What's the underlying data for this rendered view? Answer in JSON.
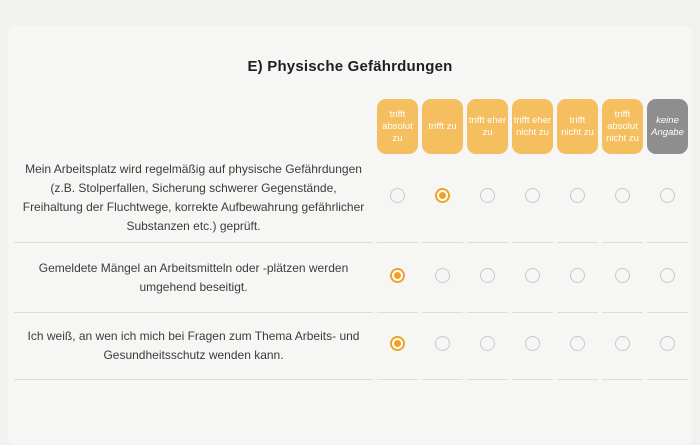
{
  "page": {
    "title": "E) Physische Gefährdungen"
  },
  "colors": {
    "background": "#f1f1ef",
    "panel": "#f6f6f5",
    "header_tile": "#f5be5f",
    "header_tile_no_answer": "#8e8e8e",
    "radio_selected": "#f0a227",
    "radio_unselected_border": "#c9c9c9",
    "divider": "#dcdcdc",
    "question_text": "#3c3c3c"
  },
  "survey": {
    "columns": [
      {
        "label": "trifft absolut zu"
      },
      {
        "label": "trifft zu"
      },
      {
        "label": "trifft eher zu"
      },
      {
        "label": "trifft eher nicht zu"
      },
      {
        "label": "trifft nicht zu"
      },
      {
        "label": "trifft absolut nicht zu"
      },
      {
        "label": "keine Angabe"
      }
    ],
    "rows": [
      {
        "text": "Mein Arbeitsplatz wird regelmäßig auf physische Gefährdungen (z.B. Stolperfallen, Sicherung schwerer Gegenstände, Freihaltung der Fluchtwege, korrekte Aufbewahrung gefährlicher Substanzen etc.) geprüft.",
        "selected": 1
      },
      {
        "text": "Gemeldete Mängel an Arbeitsmitteln oder -plätzen werden umgehend beseitigt.",
        "selected": 0
      },
      {
        "text": "Ich weiß, an wen ich mich bei Fragen zum Thema Arbeits- und Gesundheitsschutz wenden kann.",
        "selected": 0
      }
    ]
  }
}
